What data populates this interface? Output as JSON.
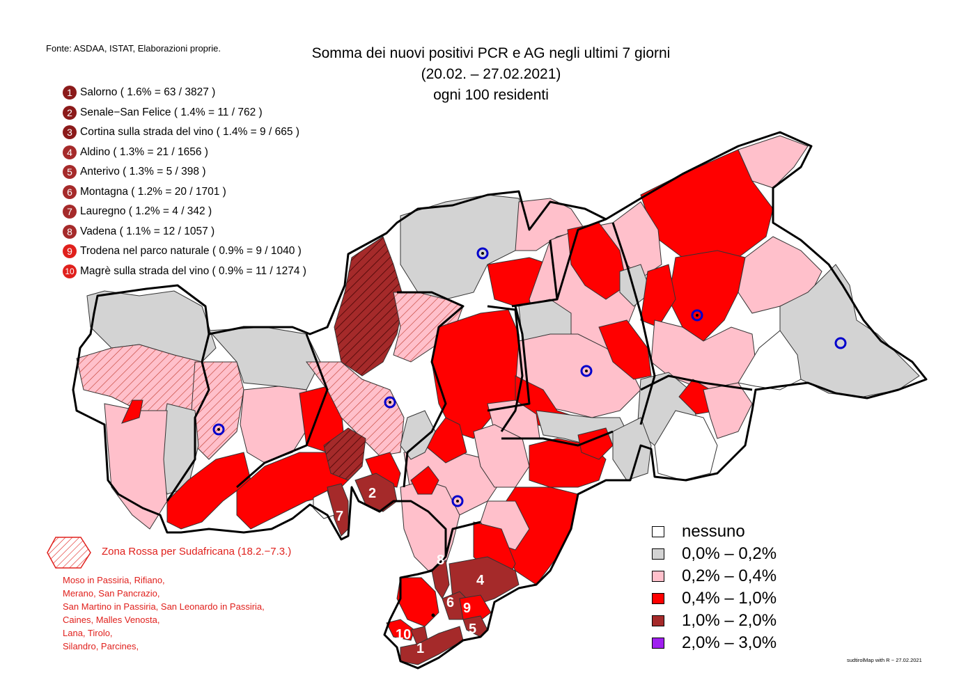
{
  "source_note": "Fonte: ASDAA, ISTAT, Elaborazioni proprie.",
  "title_lines": [
    "Somma dei nuovi positivi PCR e AG negli ultimi 7 giorni",
    "(20.02. – 27.02.2021)",
    "ogni 100 residenti"
  ],
  "ranking": [
    {
      "rank": "1",
      "text": "Salorno ( 1.6% = 63 / 3827 )"
    },
    {
      "rank": "2",
      "text": "Senale−San Felice ( 1.4% = 11 / 762 )"
    },
    {
      "rank": "3",
      "text": "Cortina sulla strada del vino ( 1.4% = 9 / 665 )"
    },
    {
      "rank": "4",
      "text": "Aldino ( 1.3% = 21 / 1656 )"
    },
    {
      "rank": "5",
      "text": "Anterivo ( 1.3% = 5 / 398 )"
    },
    {
      "rank": "6",
      "text": "Montagna ( 1.2% = 20 / 1701 )"
    },
    {
      "rank": "7",
      "text": "Lauregno ( 1.2% = 4 / 342 )"
    },
    {
      "rank": "8",
      "text": "Vadena ( 1.1% = 12 / 1057 )"
    },
    {
      "rank": "9",
      "text": "Trodena nel parco naturale ( 0.9% = 9 / 1040 )"
    },
    {
      "rank": "10",
      "text": "Magrè sulla strada del vino ( 0.9% = 11 / 1274 )"
    }
  ],
  "red_zone": {
    "label": "Zona Rossa per Sudafricana (18.2.−7.3.)",
    "municipalities": [
      "Moso in Passiria,  Rifiano,",
      "Merano,  San Pancrazio,",
      "San Martino in Passiria,  San Leonardo in Passiria,",
      "Caines,  Malles Venosta,",
      "Lana,  Tirolo,",
      "Silandro,  Parcines,"
    ],
    "color": "#e0201c"
  },
  "legend": [
    {
      "label": "nessuno",
      "color": "#ffffff"
    },
    {
      "label": "0,0% – 0,2%",
      "color": "#d3d3d3"
    },
    {
      "label": "0,2% – 0,4%",
      "color": "#ffc0cb"
    },
    {
      "label": "0,4% – 1,0%",
      "color": "#ff0000"
    },
    {
      "label": "1,0% – 2,0%",
      "color": "#a52a2a"
    },
    {
      "label": "2,0% – 3,0%",
      "color": "#a020f0"
    }
  ],
  "map_labels": [
    "1",
    "2",
    "4",
    "5",
    "6",
    "7",
    "8",
    "9",
    "10"
  ],
  "credit": "sudtirolMap with R − 27.02.2021",
  "colors": {
    "rank_top3": "#8b1a1a",
    "rank_mid": "#b03a3a",
    "rank_bottom": "#e0201c"
  }
}
